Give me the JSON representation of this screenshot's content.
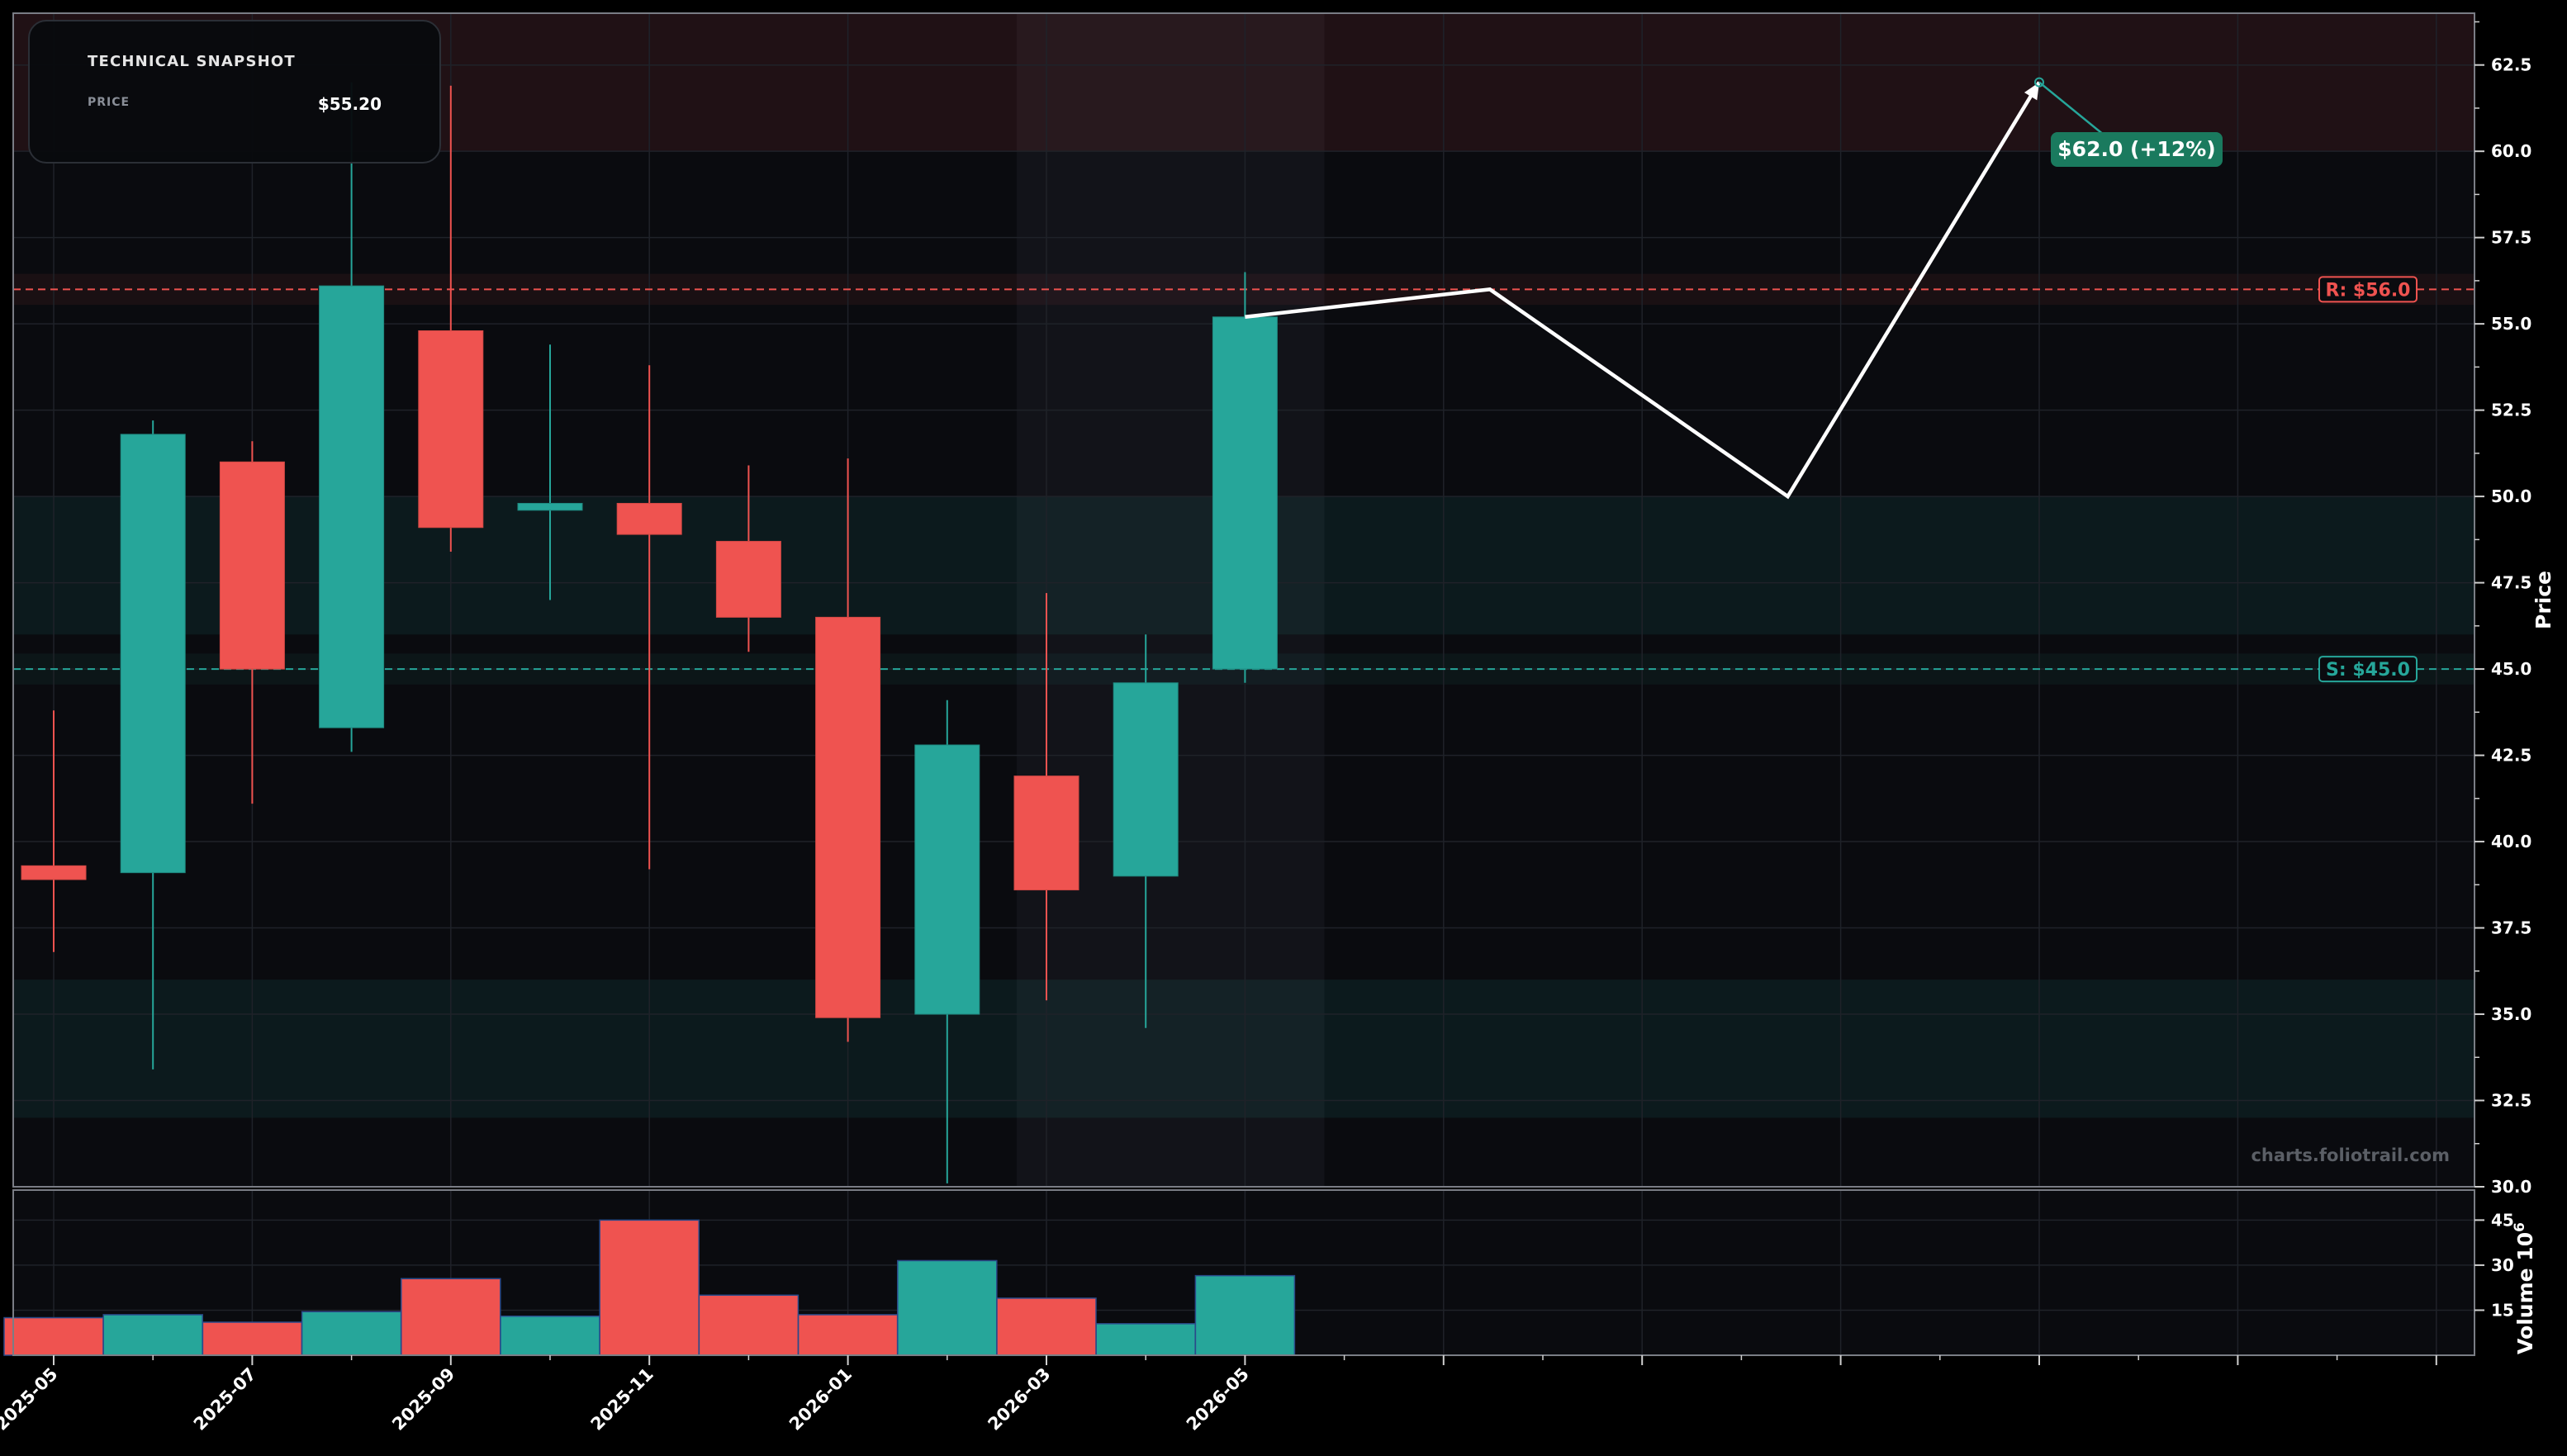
{
  "snapshot": {
    "title": "TECHNICAL SNAPSHOT",
    "price_label": "PRICE",
    "price_value": "$55.20"
  },
  "watermark": "charts.foliotrail.com",
  "colors": {
    "background": "#000000",
    "panel": "#0a0b0f",
    "up": "#26a69a",
    "down": "#ef5350",
    "resistance": "#ef5350",
    "support": "#26a69a",
    "target_badge": "#1a7a5e",
    "projection": "#ffffff"
  },
  "chart_data": {
    "type": "candlestick",
    "xlabel": "",
    "ylabel": "Price",
    "ylim": [
      30,
      64
    ],
    "price_ticks": [
      30.0,
      32.5,
      35.0,
      37.5,
      40.0,
      42.5,
      45.0,
      47.5,
      50.0,
      52.5,
      55.0,
      57.5,
      60.0,
      62.5
    ],
    "date_ticks": [
      "2025-05",
      "2025-07",
      "2025-09",
      "2025-11",
      "2026-01",
      "2026-03",
      "2026-05"
    ],
    "candles": [
      {
        "date": "2025-05",
        "open": 39.3,
        "high": 43.8,
        "low": 36.8,
        "close": 38.9
      },
      {
        "date": "2025-06",
        "open": 39.1,
        "high": 52.2,
        "low": 33.4,
        "close": 51.8
      },
      {
        "date": "2025-07",
        "open": 51.0,
        "high": 51.6,
        "low": 41.1,
        "close": 45.0
      },
      {
        "date": "2025-08",
        "open": 43.3,
        "high": 62.0,
        "low": 42.6,
        "close": 56.1
      },
      {
        "date": "2025-09",
        "open": 54.8,
        "high": 61.9,
        "low": 48.4,
        "close": 49.1
      },
      {
        "date": "2025-10",
        "open": 49.6,
        "high": 54.4,
        "low": 47.0,
        "close": 49.8
      },
      {
        "date": "2025-11",
        "open": 49.8,
        "high": 53.8,
        "low": 39.2,
        "close": 48.9
      },
      {
        "date": "2025-12",
        "open": 48.7,
        "high": 50.9,
        "low": 45.5,
        "close": 46.5
      },
      {
        "date": "2026-01",
        "open": 46.5,
        "high": 51.1,
        "low": 34.2,
        "close": 34.9
      },
      {
        "date": "2026-02",
        "open": 35.0,
        "high": 44.1,
        "low": 30.1,
        "close": 42.8
      },
      {
        "date": "2026-03",
        "open": 41.9,
        "high": 47.2,
        "low": 35.4,
        "close": 38.6
      },
      {
        "date": "2026-04",
        "open": 39.0,
        "high": 46.0,
        "low": 34.6,
        "close": 44.6
      },
      {
        "date": "2026-05",
        "open": 45.0,
        "high": 56.5,
        "low": 44.6,
        "close": 55.2
      }
    ],
    "volume": {
      "ylabel": "Volume",
      "ylabel_exp": "6",
      "ticks": [
        15,
        30,
        45
      ],
      "ylim": [
        0,
        55
      ],
      "values": [
        12.5,
        13.5,
        11.0,
        14.5,
        25.5,
        13.0,
        45.0,
        20.0,
        13.5,
        31.5,
        19.0,
        10.5,
        26.5
      ]
    },
    "resistance": {
      "value": 56.0,
      "label": "R: $56.0"
    },
    "support": {
      "value": 45.0,
      "label": "S: $45.0"
    },
    "zones": [
      {
        "kind": "resistance",
        "from": 60.0,
        "to": 64.0
      },
      {
        "kind": "support",
        "from": 46.0,
        "to": 50.0
      },
      {
        "kind": "support",
        "from": 32.0,
        "to": 36.0
      }
    ],
    "projection": {
      "points": [
        {
          "date": "2026-05",
          "value": 55.2
        },
        {
          "date": "2026-07-15",
          "value": 56.0
        },
        {
          "date": "2026-10-15",
          "value": 50.0
        },
        {
          "date": "2027-01-01",
          "value": 62.0
        }
      ],
      "target_label": "$62.0 (+12%)"
    }
  }
}
